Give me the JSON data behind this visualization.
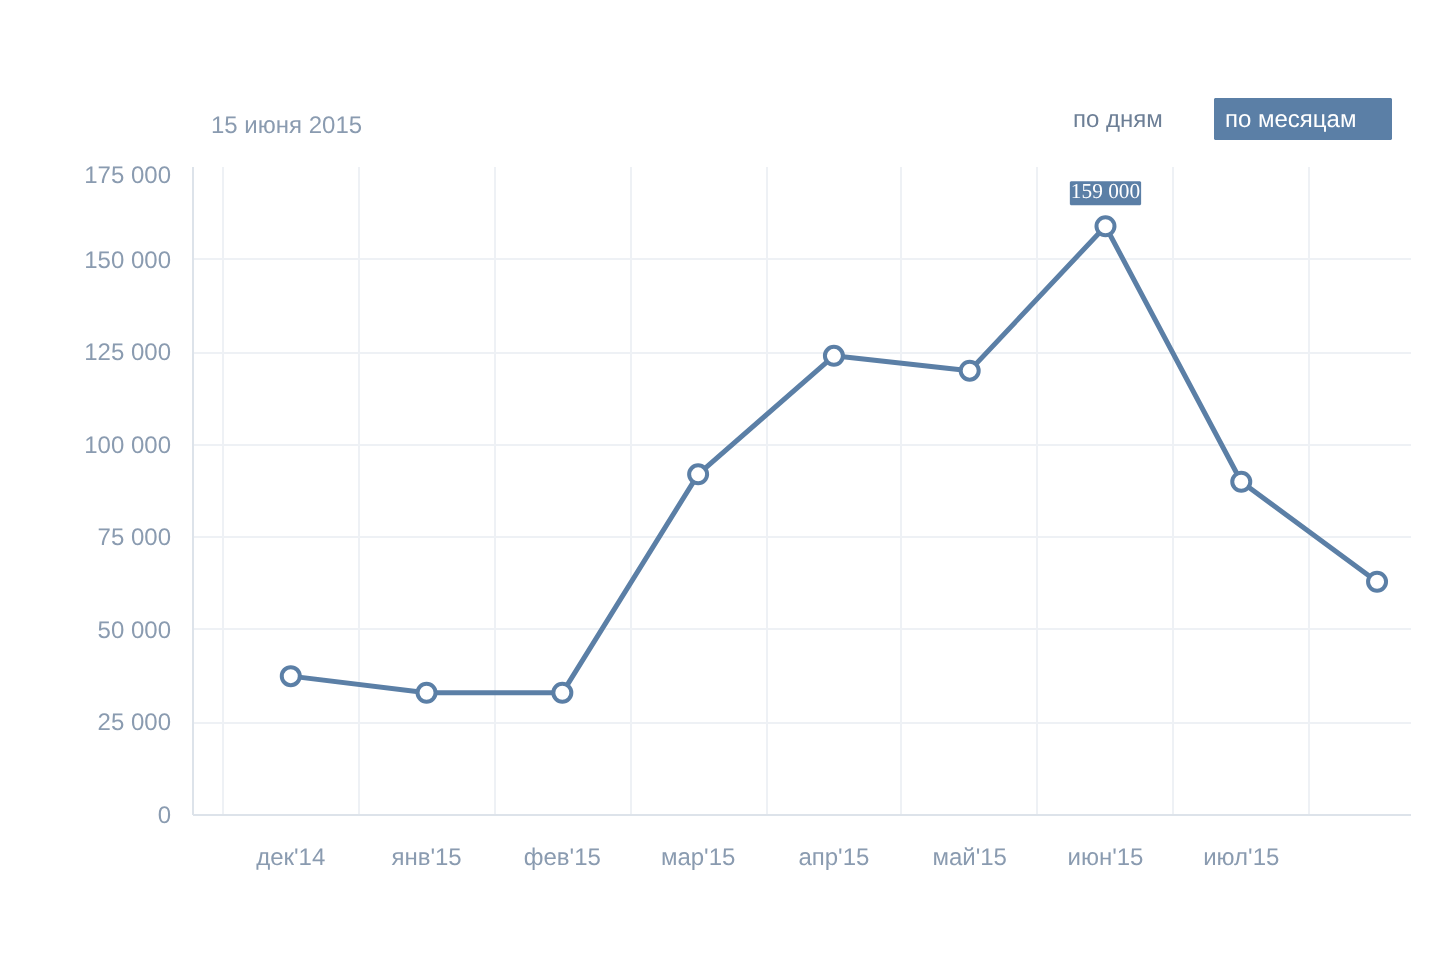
{
  "chart_data": {
    "type": "line",
    "categories": [
      "дек'14",
      "янв'15",
      "фев'15",
      "мар'15",
      "апр'15",
      "май'15",
      "июн'15",
      "июл'15",
      null
    ],
    "values": [
      37500,
      33000,
      33000,
      92000,
      124000,
      120000,
      159000,
      90000,
      63000
    ],
    "value_labels": [
      null,
      null,
      null,
      null,
      null,
      null,
      "159 000",
      null,
      null
    ],
    "color": "#5b7fa6",
    "ylim": [
      0,
      175000
    ],
    "yticks": [
      0,
      {
        "value": 25000,
        "label": "25 000"
      },
      {
        "value": 50000,
        "label": "50 000"
      },
      {
        "value": 75000,
        "label": "75 000"
      },
      {
        "value": 100000,
        "label": "100 000"
      },
      {
        "value": 125000,
        "label": "125 000"
      },
      {
        "value": 150000,
        "label": "150 000"
      },
      {
        "value": 175000,
        "label": "175 000"
      }
    ],
    "grid": true,
    "marker": "circle",
    "annotations": [
      "15 июня 2015",
      "по дням",
      "по месяцам"
    ]
  }
}
